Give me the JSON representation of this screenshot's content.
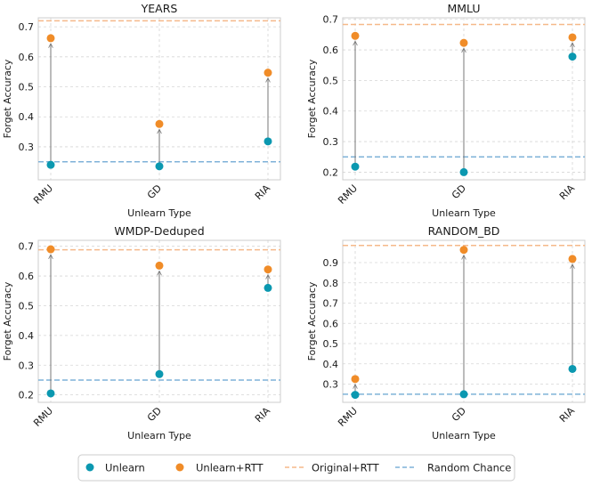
{
  "colors": {
    "unlearn": "#0b98b0",
    "unlearn_rtt": "#f08c28",
    "original_rtt": "#f5b98a",
    "random_chance": "#7fb2d8",
    "arrow": "#777777",
    "grid": "#d6d6d6",
    "frame": "#cccccc"
  },
  "legend": {
    "unlearn": "Unlearn",
    "unlearn_rtt": "Unlearn+RTT",
    "original_rtt": "Original+RTT",
    "random_chance": "Random Chance"
  },
  "chart_data": [
    {
      "type": "scatter",
      "title": "YEARS",
      "xlabel": "Unlearn Type",
      "ylabel": "Forget Accuracy",
      "categories": [
        "RMU",
        "GD",
        "RIA"
      ],
      "ylim": [
        0.19,
        0.73
      ],
      "yticks": [
        "0.3",
        "0.4",
        "0.5",
        "0.6",
        "0.7"
      ],
      "ytick_values": [
        0.3,
        0.4,
        0.5,
        0.6,
        0.7
      ],
      "series": [
        {
          "name": "Unlearn",
          "values": [
            0.24,
            0.235,
            0.318
          ]
        },
        {
          "name": "Unlearn+RTT",
          "values": [
            0.662,
            0.376,
            0.547
          ]
        }
      ],
      "original_rtt": 0.72,
      "random_chance": 0.25
    },
    {
      "type": "scatter",
      "title": "MMLU",
      "xlabel": "Unlearn Type",
      "ylabel": "Forget Accuracy",
      "categories": [
        "RMU",
        "GD",
        "RIA"
      ],
      "ylim": [
        0.175,
        0.705
      ],
      "yticks": [
        "0.2",
        "0.3",
        "0.4",
        "0.5",
        "0.6",
        "0.7"
      ],
      "ytick_values": [
        0.2,
        0.3,
        0.4,
        0.5,
        0.6,
        0.7
      ],
      "series": [
        {
          "name": "Unlearn",
          "values": [
            0.218,
            0.2,
            0.578
          ]
        },
        {
          "name": "Unlearn+RTT",
          "values": [
            0.646,
            0.623,
            0.641
          ]
        }
      ],
      "original_rtt": 0.683,
      "random_chance": 0.25
    },
    {
      "type": "scatter",
      "title": "WMDP-Deduped",
      "xlabel": "Unlearn Type",
      "ylabel": "Forget Accuracy",
      "categories": [
        "RMU",
        "GD",
        "RIA"
      ],
      "ylim": [
        0.175,
        0.72
      ],
      "yticks": [
        "0.2",
        "0.3",
        "0.4",
        "0.5",
        "0.6",
        "0.7"
      ],
      "ytick_values": [
        0.2,
        0.3,
        0.4,
        0.5,
        0.6,
        0.7
      ],
      "series": [
        {
          "name": "Unlearn",
          "values": [
            0.205,
            0.27,
            0.56
          ]
        },
        {
          "name": "Unlearn+RTT",
          "values": [
            0.69,
            0.635,
            0.622
          ]
        }
      ],
      "original_rtt": 0.688,
      "random_chance": 0.25
    },
    {
      "type": "scatter",
      "title": "RANDOM_BD",
      "xlabel": "Unlearn Type",
      "ylabel": "Forget Accuracy",
      "categories": [
        "RMU",
        "GD",
        "RIA"
      ],
      "ylim": [
        0.21,
        1.01
      ],
      "yticks": [
        "0.3",
        "0.4",
        "0.5",
        "0.6",
        "0.7",
        "0.8",
        "0.9"
      ],
      "ytick_values": [
        0.3,
        0.4,
        0.5,
        0.6,
        0.7,
        0.8,
        0.9
      ],
      "series": [
        {
          "name": "Unlearn",
          "values": [
            0.247,
            0.25,
            0.375
          ]
        },
        {
          "name": "Unlearn+RTT",
          "values": [
            0.325,
            0.963,
            0.918
          ]
        }
      ],
      "original_rtt": 0.985,
      "random_chance": 0.25
    }
  ]
}
